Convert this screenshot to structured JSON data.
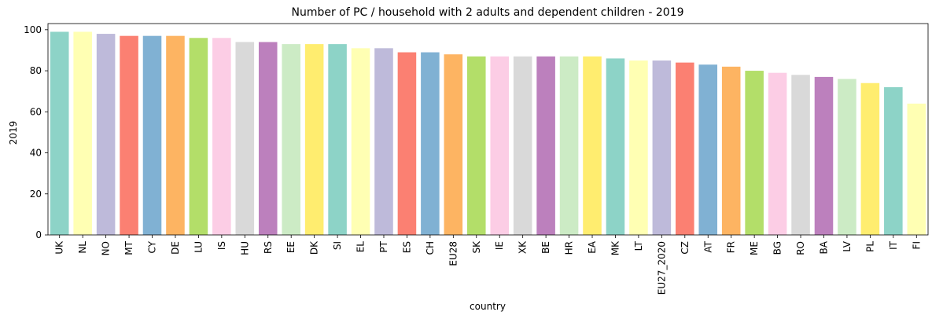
{
  "chart_data": {
    "type": "bar",
    "title": "Number of PC / household with 2 adults and dependent children - 2019",
    "xlabel": "country",
    "ylabel": "2019",
    "ylim": [
      0,
      103
    ],
    "yticks": [
      0,
      20,
      40,
      60,
      80,
      100
    ],
    "grid": false,
    "categories": [
      "UK",
      "NL",
      "NO",
      "MT",
      "CY",
      "DE",
      "LU",
      "IS",
      "HU",
      "RS",
      "EE",
      "DK",
      "SI",
      "EL",
      "PT",
      "ES",
      "CH",
      "EU28",
      "SK",
      "IE",
      "XK",
      "BE",
      "HR",
      "EA",
      "MK",
      "LT",
      "EU27_2020",
      "CZ",
      "AT",
      "FR",
      "ME",
      "BG",
      "RO",
      "BA",
      "LV",
      "PL",
      "IT",
      "FI"
    ],
    "values": [
      99,
      99,
      98,
      97,
      97,
      97,
      96,
      96,
      94,
      94,
      93,
      93,
      93,
      91,
      91,
      89,
      89,
      88,
      87,
      87,
      87,
      87,
      87,
      87,
      86,
      85,
      85,
      84,
      83,
      82,
      80,
      79,
      78,
      77,
      76,
      74,
      72,
      64
    ],
    "palette": [
      "#8dd3c7",
      "#ffffb3",
      "#bebada",
      "#fb8072",
      "#80b1d3",
      "#fdb462",
      "#b3de69",
      "#fccde5",
      "#d9d9d9",
      "#bc80bd",
      "#ccebc5",
      "#ffed6f"
    ]
  }
}
